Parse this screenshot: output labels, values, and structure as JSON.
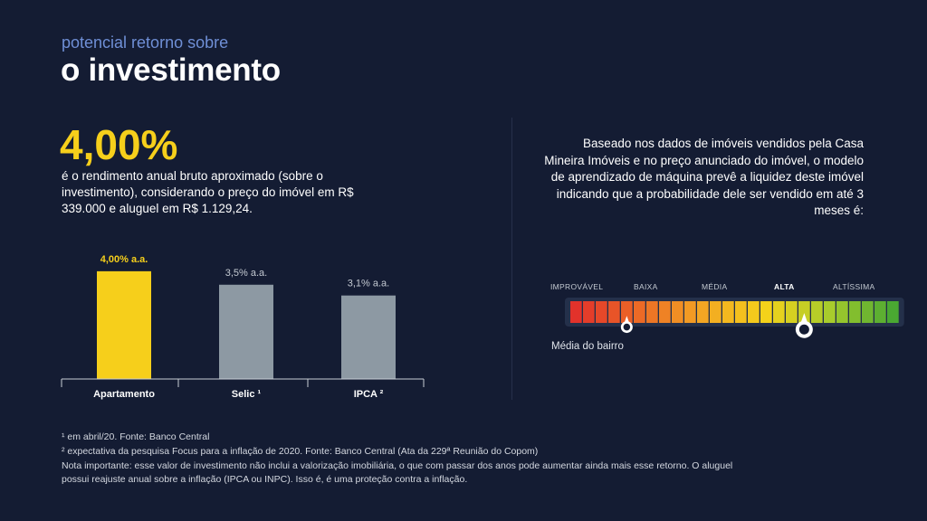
{
  "header": {
    "subtitle": "potencial retorno sobre",
    "title": "o investimento"
  },
  "highlight": {
    "value": "4,00%",
    "description": "é o rendimento anual bruto aproximado (sobre o investimento), considerando o preço do imóvel em R$ 339.000 e aluguel em R$ 1.129,24."
  },
  "chart_data": {
    "type": "bar",
    "categories": [
      "Apartamento",
      "Selic ¹",
      "IPCA ²"
    ],
    "values": [
      4.0,
      3.5,
      3.1
    ],
    "value_labels": [
      "4,00% a.a.",
      "3,5% a.a.",
      "3,1% a.a."
    ],
    "ylim": [
      0,
      4.5
    ],
    "grid": false,
    "colors": [
      "#f6cf1b",
      "#8d99a3",
      "#8d99a3"
    ],
    "label_colors": [
      "#f6cf1b",
      "#c4cad2",
      "#c4cad2"
    ]
  },
  "liquidity": {
    "text": "Baseado nos dados de imóveis vendidos pela Casa Mineira Imóveis e no preço anunciado do imóvel, o modelo de aprendizado de máquina prevê a liquidez deste imóvel indicando que a probabilidade dele ser vendido em até 3 meses é:",
    "levels": [
      "IMPROVÁVEL",
      "BAIXA",
      "MÉDIA",
      "ALTA",
      "ALTÍSSIMA"
    ],
    "active_level": "ALTA",
    "segment_count": 26,
    "property_segment": 18,
    "neighborhood_segment": 4,
    "neighborhood_label": "Média do bairro",
    "colors": [
      "#e2322b",
      "#ec6a26",
      "#f3a623",
      "#f4d21a",
      "#a8cc2c",
      "#4aa832"
    ]
  },
  "footnotes": [
    "¹ em abril/20. Fonte: Banco Central",
    "² expectativa da pesquisa Focus para a inflação de 2020. Fonte: Banco Central (Ata da 229ª Reunião do Copom)",
    "Nota importante: esse valor de investimento não inclui a valorização imobiliária, o que com passar dos anos pode aumentar ainda mais esse retorno. O aluguel possui reajuste anual  sobre a inflação (IPCA ou INPC). Isso é, é uma proteção contra a inflação."
  ]
}
